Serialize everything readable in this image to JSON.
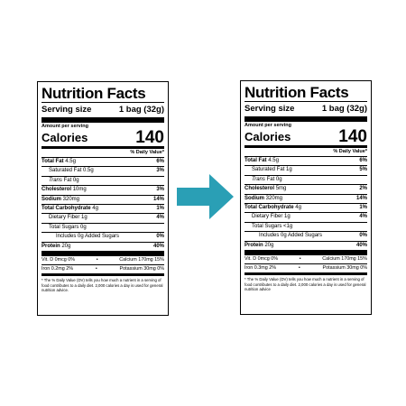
{
  "left_label": {
    "title": "Nutrition Facts",
    "serving_label": "Serving size",
    "serving_value": "1 bag (32g)",
    "amount_per_serving": "Amount per serving",
    "calories_label": "Calories",
    "calories_value": "140",
    "daily_value_header": "% Daily Value*",
    "rows": [
      {
        "label": "Total Fat",
        "amount": "4.5g",
        "pct": "6%"
      },
      {
        "label": "Saturated Fat",
        "amount": "0.5g",
        "pct": "3%"
      },
      {
        "label": "Trans",
        "label_rest": "Fat",
        "amount": "0g",
        "pct": ""
      },
      {
        "label": "Cholesterol",
        "amount": "10mg",
        "pct": "3%"
      },
      {
        "label": "Sodium",
        "amount": "320mg",
        "pct": "14%"
      },
      {
        "label": "Total Carbohydrate",
        "amount": "4g",
        "pct": "1%"
      },
      {
        "label": "Dietary Fiber",
        "amount": "1g",
        "pct": "4%"
      },
      {
        "label": "Total Sugars",
        "amount": "0g",
        "pct": ""
      },
      {
        "label": "Includes 0g Added Sugars",
        "amount": "",
        "pct": "0%"
      },
      {
        "label": "Protein",
        "amount": "20g",
        "pct": "40%"
      }
    ],
    "vitamins": [
      {
        "left": "Vit. D 0mcg 0%",
        "right": "Calcium 170mg 15%"
      },
      {
        "left": "Iron 0.2mg 2%",
        "right": "Potassium 30mg 0%"
      }
    ],
    "footnote": "* The % Daily Value (DV) tells you how much a nutrient in a serving of food contributes to a daily diet. 2,000 calories a day is used for general nutrition advice."
  },
  "right_label": {
    "title": "Nutrition Facts",
    "serving_label": "Serving size",
    "serving_value": "1 bag (32g)",
    "amount_per_serving": "Amount per serving",
    "calories_label": "Calories",
    "calories_value": "140",
    "daily_value_header": "% Daily Value*",
    "rows": [
      {
        "label": "Total Fat",
        "amount": "4.5g",
        "pct": "6%"
      },
      {
        "label": "Saturated Fat",
        "amount": "1g",
        "pct": "5%"
      },
      {
        "label": "Trans",
        "label_rest": "Fat 0g",
        "amount": "",
        "pct": ""
      },
      {
        "label": "Cholesterol",
        "amount": "5mg",
        "pct": "2%"
      },
      {
        "label": "Sodium",
        "amount": "320mg",
        "pct": "14%"
      },
      {
        "label": "Total Carbohydrate",
        "amount": "4g",
        "pct": "1%"
      },
      {
        "label": "Dietary Fiber",
        "amount": "1g",
        "pct": "4%"
      },
      {
        "label": "Total Sugars",
        "amount": "<1g",
        "pct": ""
      },
      {
        "label": "Includes 0g Added Sugars",
        "amount": "",
        "pct": "0%"
      },
      {
        "label": "Protein",
        "amount": "20g",
        "pct": "40%"
      }
    ],
    "vitamins": [
      {
        "left": "Vit. D 0mcg 0%",
        "right": "Calcium 170mg 15%"
      },
      {
        "left": "Iron 0.3mg 2%",
        "right": "Potassium 30mg 0%"
      }
    ],
    "footnote": "* The % Daily Value (DV) tells you how much a nutrient in a serving of food contributes to a daily diet. 2,000 calories a day is used for general nutrition advice"
  },
  "arrow": {
    "icon": "right-arrow-icon",
    "color": "#2a9fb5"
  }
}
